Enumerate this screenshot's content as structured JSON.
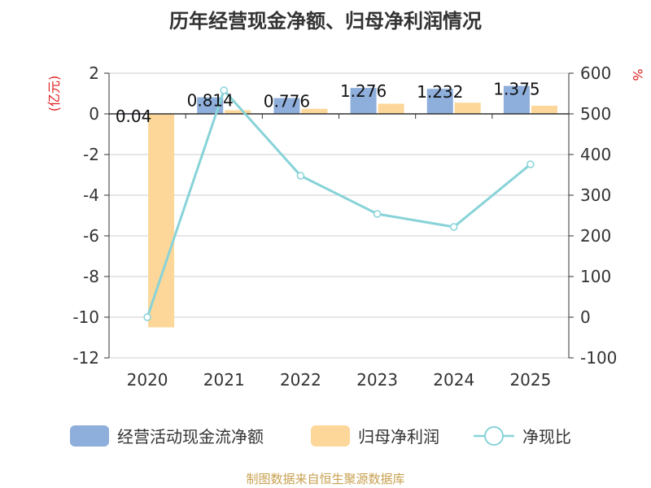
{
  "chart_data": {
    "type": "bar",
    "title": "历年经营现金净额、归母净利润情况",
    "categories": [
      "2020",
      "2021",
      "2022",
      "2023",
      "2024",
      "2025"
    ],
    "series": [
      {
        "name": "经营活动现金流净额",
        "axis": "left",
        "kind": "bar",
        "color": "#8eaedb",
        "values": [
          0.04,
          0.814,
          0.776,
          1.276,
          1.232,
          1.375
        ],
        "labels": [
          "0.04",
          "0.814",
          "0.776",
          "1.276",
          "1.232",
          "1.375"
        ]
      },
      {
        "name": "归母净利润",
        "axis": "left",
        "kind": "bar",
        "color": "#fdd799",
        "values": [
          -10.5,
          0.18,
          0.25,
          0.5,
          0.55,
          0.4
        ]
      },
      {
        "name": "净现比",
        "axis": "right",
        "kind": "line",
        "color": "#88d3d8",
        "values": [
          0,
          558,
          348,
          254,
          222,
          376
        ]
      }
    ],
    "left_axis": {
      "unit": "(亿元)",
      "min": -12,
      "max": 2,
      "step": 2,
      "ticks": [
        "2",
        "0",
        "-2",
        "-4",
        "-6",
        "-8",
        "-10",
        "-12"
      ]
    },
    "right_axis": {
      "unit": "%",
      "min": -100,
      "max": 600,
      "step": 100,
      "ticks": [
        "600",
        "500",
        "400",
        "300",
        "200",
        "100",
        "0",
        "-100"
      ]
    },
    "legend": [
      {
        "label": "经营活动现金流净额",
        "type": "bar",
        "color": "#8eaedb"
      },
      {
        "label": "归母净利润",
        "type": "bar",
        "color": "#fdd799"
      },
      {
        "label": "净现比",
        "type": "line",
        "color": "#88d3d8"
      }
    ],
    "source": "制图数据来自恒生聚源数据库",
    "grid": true,
    "legend_position": "bottom"
  }
}
